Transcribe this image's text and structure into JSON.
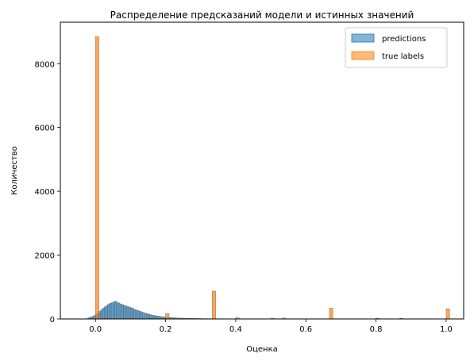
{
  "chart_data": {
    "type": "bar",
    "title": "Распределение предсказаний модели и истинных значений",
    "xlabel": "Оценка",
    "ylabel": "Количество",
    "xlim": [
      -0.1,
      1.05
    ],
    "ylim": [
      0,
      9300
    ],
    "xticks": [
      0.0,
      0.2,
      0.4,
      0.6,
      0.8,
      1.0
    ],
    "xtick_labels": [
      "0.0",
      "0.2",
      "0.4",
      "0.6",
      "0.8",
      "1.0"
    ],
    "yticks": [
      0,
      2000,
      4000,
      6000,
      8000
    ],
    "ytick_labels": [
      "0",
      "2000",
      "4000",
      "6000",
      "8000"
    ],
    "grid": false,
    "legend_position": "top-right",
    "series": [
      {
        "name": "predictions",
        "color": "#1f77b4",
        "bin_width": 0.005,
        "bins": [
          [
            -0.03,
            5
          ],
          [
            -0.025,
            15
          ],
          [
            -0.02,
            40
          ],
          [
            -0.015,
            60
          ],
          [
            -0.01,
            80
          ],
          [
            -0.005,
            110
          ],
          [
            0.0,
            150
          ],
          [
            0.005,
            190
          ],
          [
            0.01,
            240
          ],
          [
            0.015,
            290
          ],
          [
            0.02,
            340
          ],
          [
            0.025,
            380
          ],
          [
            0.03,
            420
          ],
          [
            0.035,
            460
          ],
          [
            0.04,
            490
          ],
          [
            0.045,
            510
          ],
          [
            0.05,
            530
          ],
          [
            0.055,
            560
          ],
          [
            0.06,
            520
          ],
          [
            0.065,
            500
          ],
          [
            0.07,
            470
          ],
          [
            0.075,
            450
          ],
          [
            0.08,
            430
          ],
          [
            0.085,
            410
          ],
          [
            0.09,
            390
          ],
          [
            0.095,
            370
          ],
          [
            0.1,
            350
          ],
          [
            0.105,
            330
          ],
          [
            0.11,
            300
          ],
          [
            0.115,
            280
          ],
          [
            0.12,
            260
          ],
          [
            0.125,
            240
          ],
          [
            0.13,
            220
          ],
          [
            0.135,
            200
          ],
          [
            0.14,
            180
          ],
          [
            0.145,
            165
          ],
          [
            0.15,
            150
          ],
          [
            0.155,
            135
          ],
          [
            0.16,
            120
          ],
          [
            0.165,
            110
          ],
          [
            0.17,
            100
          ],
          [
            0.175,
            90
          ],
          [
            0.18,
            80
          ],
          [
            0.185,
            72
          ],
          [
            0.19,
            65
          ],
          [
            0.195,
            58
          ],
          [
            0.2,
            52
          ],
          [
            0.205,
            47
          ],
          [
            0.21,
            43
          ],
          [
            0.215,
            40
          ],
          [
            0.22,
            37
          ],
          [
            0.225,
            34
          ],
          [
            0.23,
            31
          ],
          [
            0.235,
            29
          ],
          [
            0.24,
            27
          ],
          [
            0.245,
            25
          ],
          [
            0.25,
            23
          ],
          [
            0.255,
            22
          ],
          [
            0.26,
            20
          ],
          [
            0.265,
            19
          ],
          [
            0.27,
            18
          ],
          [
            0.275,
            17
          ],
          [
            0.28,
            16
          ],
          [
            0.285,
            15
          ],
          [
            0.29,
            14
          ],
          [
            0.295,
            13
          ],
          [
            0.3,
            12
          ],
          [
            0.305,
            11
          ],
          [
            0.31,
            10
          ],
          [
            0.315,
            10
          ],
          [
            0.32,
            9
          ],
          [
            0.325,
            9
          ],
          [
            0.33,
            8
          ],
          [
            0.335,
            8
          ],
          [
            0.34,
            7
          ],
          [
            0.345,
            7
          ],
          [
            0.35,
            6
          ],
          [
            0.355,
            6
          ],
          [
            0.36,
            6
          ],
          [
            0.365,
            5
          ],
          [
            0.37,
            5
          ],
          [
            0.375,
            5
          ],
          [
            0.38,
            4
          ],
          [
            0.385,
            4
          ],
          [
            0.39,
            4
          ],
          [
            0.395,
            4
          ],
          [
            0.4,
            3
          ],
          [
            0.405,
            3
          ],
          [
            0.41,
            3
          ],
          [
            0.415,
            3
          ],
          [
            0.42,
            2
          ],
          [
            0.425,
            2
          ],
          [
            0.43,
            2
          ],
          [
            0.44,
            10
          ],
          [
            0.45,
            2
          ],
          [
            0.46,
            2
          ],
          [
            0.47,
            1
          ],
          [
            0.48,
            1
          ],
          [
            0.5,
            1
          ],
          [
            0.52,
            1
          ],
          [
            0.55,
            1
          ],
          [
            0.6,
            1
          ]
        ]
      },
      {
        "name": "true labels",
        "color": "#ff7f0e",
        "bin_width": 0.01,
        "bins": [
          [
            0.0,
            8850
          ],
          [
            0.2,
            170
          ],
          [
            0.333,
            870
          ],
          [
            0.4,
            40
          ],
          [
            0.5,
            25
          ],
          [
            0.533,
            30
          ],
          [
            0.667,
            340
          ],
          [
            0.8,
            20
          ],
          [
            0.867,
            20
          ],
          [
            1.0,
            320
          ]
        ]
      }
    ]
  }
}
